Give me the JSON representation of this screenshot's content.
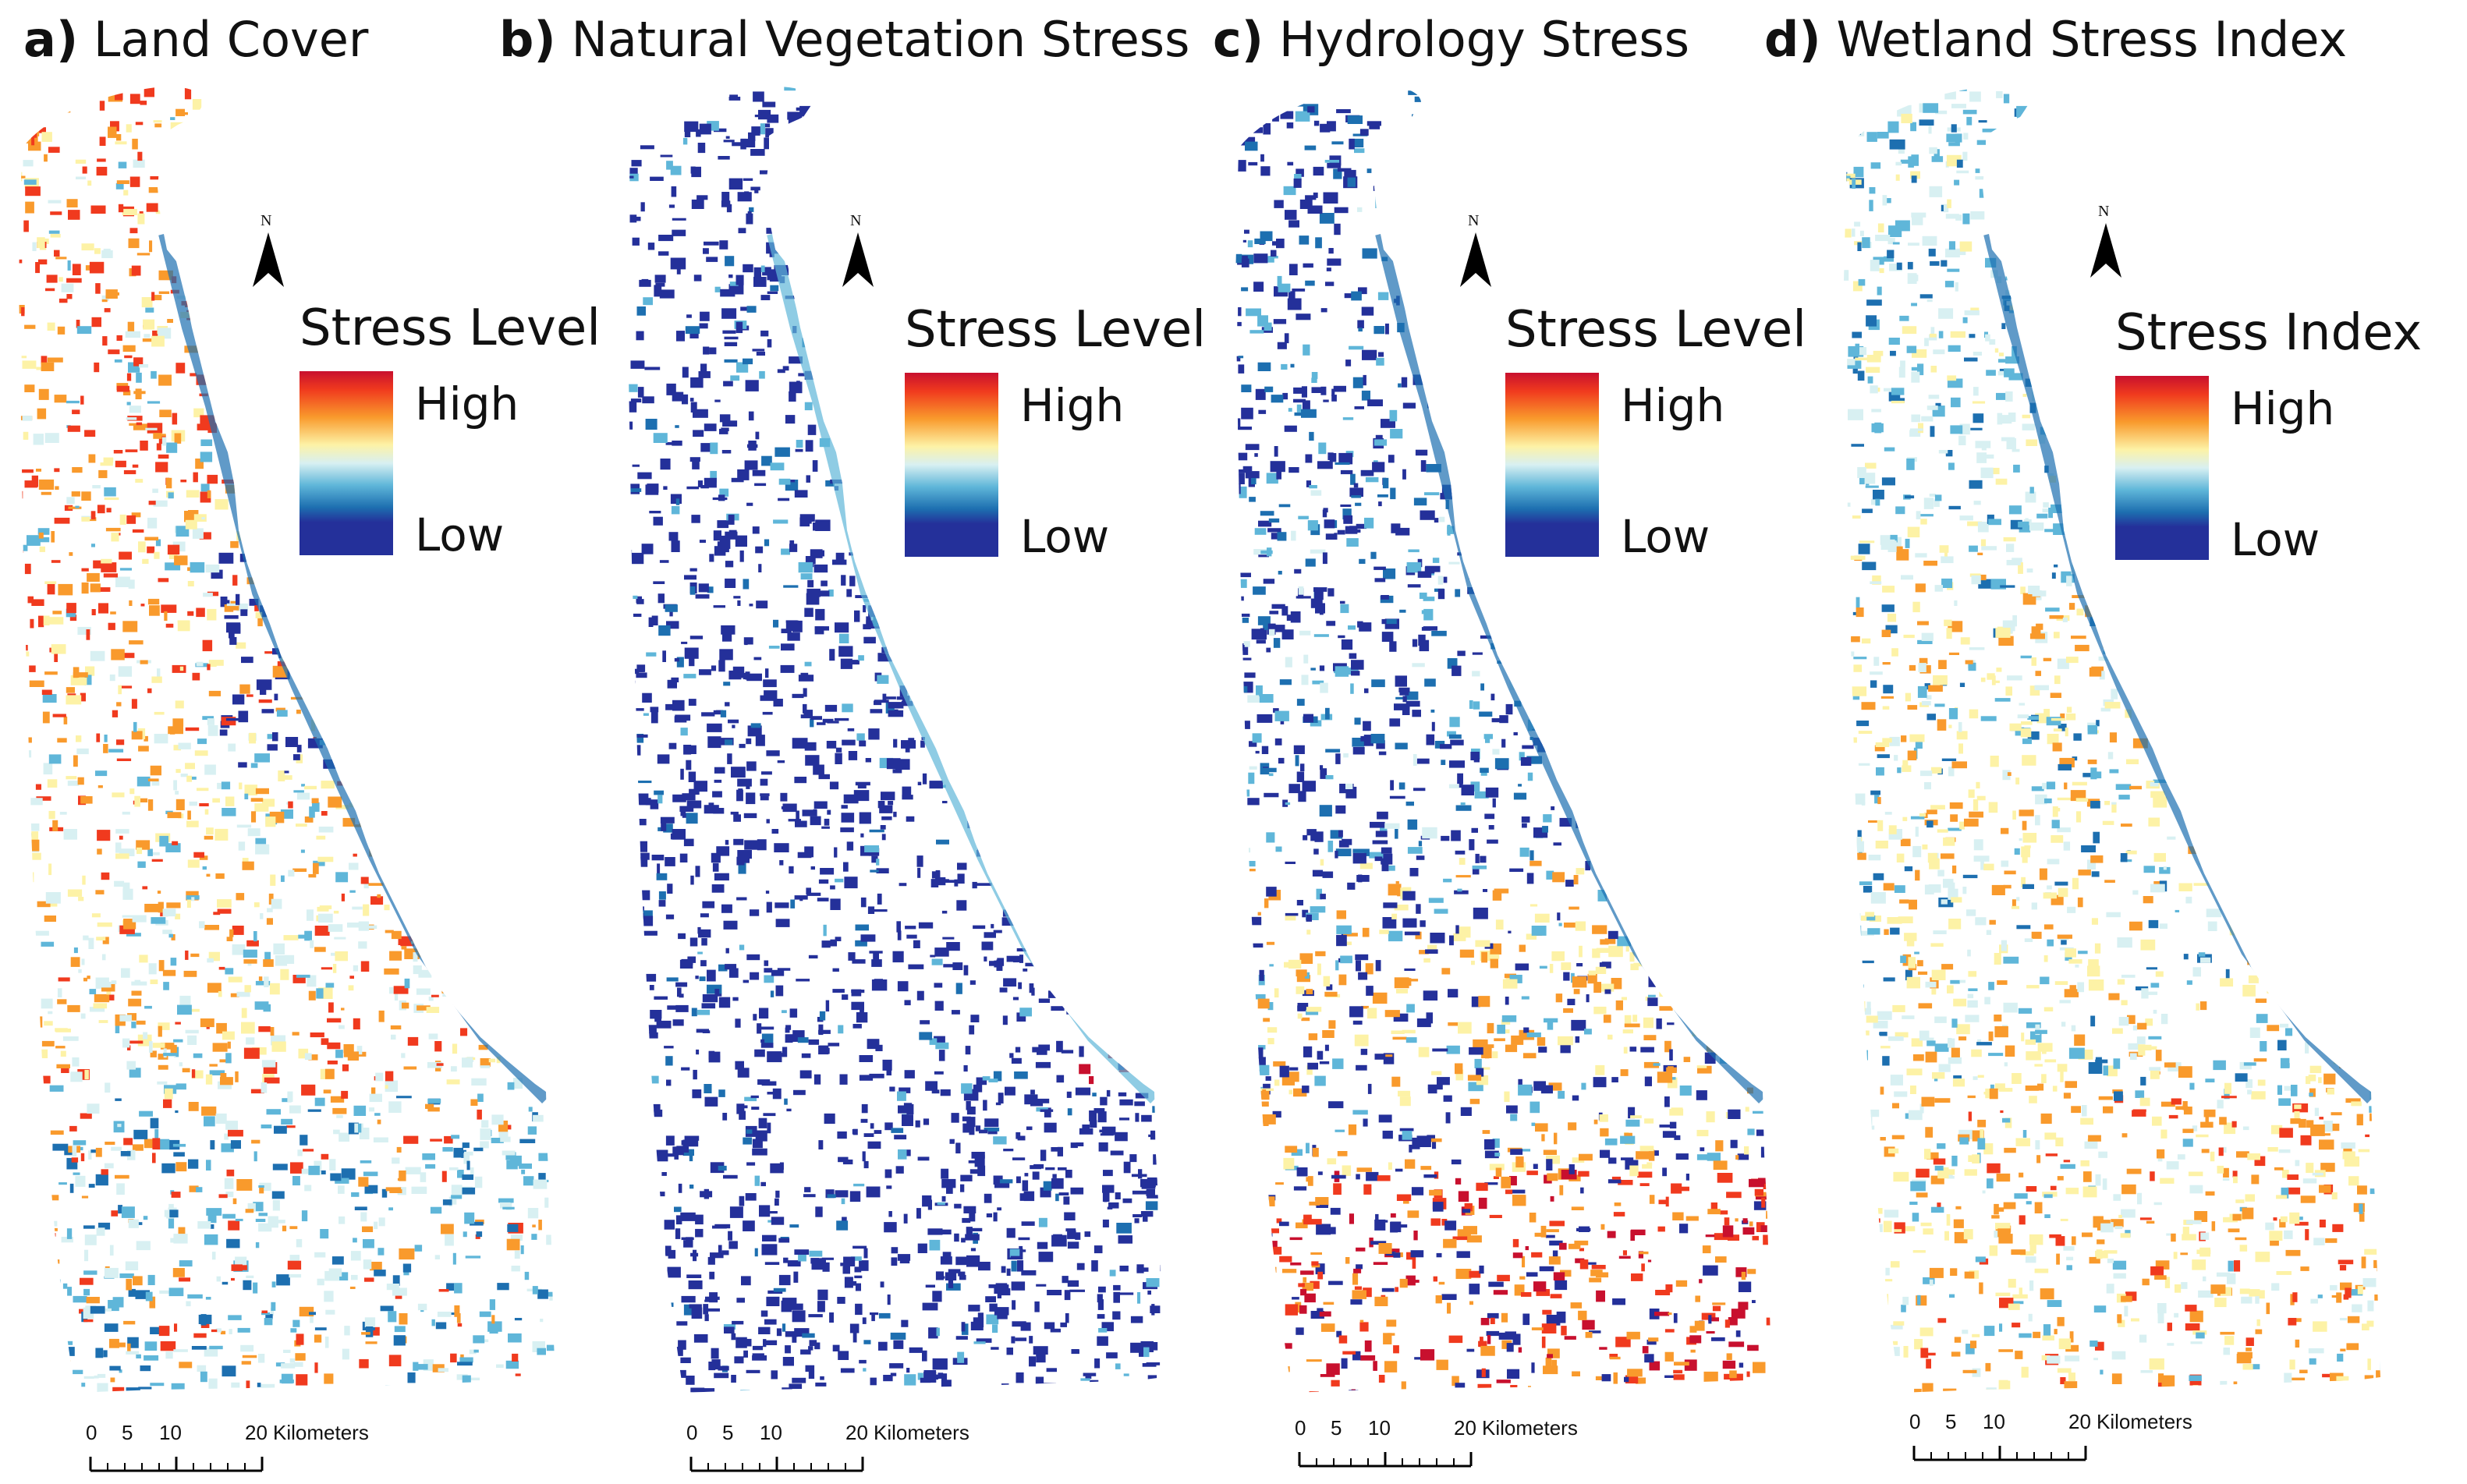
{
  "panels": [
    {
      "letter": "a)",
      "title": "Land Cover",
      "legend_title": "Stress Level",
      "legend_high": "High",
      "legend_low": "Low",
      "theme": "landcover"
    },
    {
      "letter": "b)",
      "title": "Natural Vegetation Stress",
      "legend_title": "Stress Level",
      "legend_high": "High",
      "legend_low": "Low",
      "theme": "vegetation"
    },
    {
      "letter": "c)",
      "title": "Hydrology Stress",
      "legend_title": "Stress Level",
      "legend_high": "High",
      "legend_low": "Low",
      "theme": "hydrology"
    },
    {
      "letter": "d)",
      "title": "Wetland Stress Index",
      "legend_title": "Stress Index",
      "legend_high": "High",
      "legend_low": "Low",
      "theme": "wetland"
    }
  ],
  "north_label": "N",
  "scale": {
    "ticks": [
      "0",
      "5",
      "10",
      "20"
    ],
    "unit": "Kilometers"
  },
  "colors": {
    "high": "#c8102e",
    "orange_red": "#f03a1e",
    "orange": "#f99a2c",
    "yellow": "#fdf2a6",
    "pale": "#d8f0f2",
    "light_blue": "#5fb6d9",
    "mid_blue": "#1d6fb0",
    "low": "#24309a"
  }
}
